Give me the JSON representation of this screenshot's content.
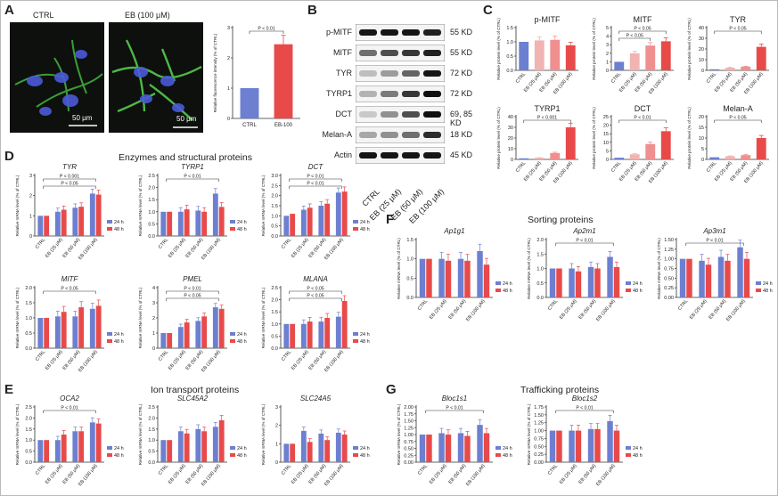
{
  "colors": {
    "blue": "#6d7fd0",
    "red": "#e84a4a",
    "pink1": "#f2b3b3",
    "pink2": "#f08f8f",
    "light1": "#fad1d1"
  },
  "panels": {
    "A": "A",
    "B": "B",
    "C": "C",
    "D": "D",
    "E": "E",
    "F": "F",
    "G": "G"
  },
  "sections": {
    "D": "Enzymes and structural proteins",
    "E": "Ion transport proteins",
    "F": "Sorting proteins",
    "G": "Trafficking proteins"
  },
  "panelA": {
    "labels": [
      "CTRL",
      "EB (100 μM)"
    ],
    "scale": "50 μm"
  },
  "western": {
    "proteins": [
      "p-MITF",
      "MITF",
      "TYR",
      "TYRP1",
      "DCT",
      "Melan-A",
      "Actin"
    ],
    "kd": [
      "55 KD",
      "55 KD",
      "72 KD",
      "72 KD",
      "69, 85 KD",
      "18 KD",
      "45 KD"
    ],
    "lanes": [
      "CTRL",
      "EB (25 μM)",
      "EB (50 μM)",
      "EB (100 μM)"
    ]
  },
  "legend": {
    "h24": "24 h",
    "h48": "48 h"
  },
  "chart_data": [
    {
      "id": "A-fluor",
      "type": "bar",
      "title": "",
      "ylabel": "Relative fluorescence intensity (% of CTRL)",
      "categories": [
        "CTRL",
        "EB-100"
      ],
      "values": [
        1.0,
        2.45
      ],
      "ylim": [
        0,
        3
      ],
      "yticks": [
        "0",
        "1",
        "2",
        "3"
      ],
      "annotations": [
        {
          "text": "P < 0.01"
        }
      ]
    },
    {
      "id": "C-pMITF",
      "type": "bar",
      "title": "p-MITF",
      "ylabel": "Relative protein level (% of CTRL)",
      "categories": [
        "CTRL",
        "EB (25 μM)",
        "EB (50 μM)",
        "EB (100 μM)"
      ],
      "values": [
        1.0,
        1.05,
        1.07,
        0.88
      ],
      "ylim": [
        0,
        1.5
      ],
      "yticks": [
        "0.0",
        "0.5",
        "1.0",
        "1.5"
      ],
      "annotations": []
    },
    {
      "id": "C-MITF",
      "type": "bar",
      "title": "MITF",
      "ylabel": "Relative protein level (% of CTRL)",
      "categories": [
        "CTRL",
        "EB (25 μM)",
        "EB (50 μM)",
        "EB (100 μM)"
      ],
      "values": [
        1.0,
        2.0,
        2.9,
        3.4
      ],
      "ylim": [
        0,
        5
      ],
      "yticks": [
        "0",
        "1",
        "2",
        "3",
        "4",
        "5"
      ],
      "annotations": [
        {
          "text": "P < 0.05"
        },
        {
          "text": "P < 0.05"
        }
      ]
    },
    {
      "id": "C-TYR",
      "type": "bar",
      "title": "TYR",
      "ylabel": "Relative protein level (% of CTRL)",
      "categories": [
        "CTRL",
        "EB (25 μM)",
        "EB (50 μM)",
        "EB (100 μM)"
      ],
      "values": [
        1.0,
        2.5,
        3.5,
        22.0
      ],
      "ylim": [
        0,
        40
      ],
      "yticks": [
        "0",
        "10",
        "20",
        "30",
        "40"
      ],
      "annotations": [
        {
          "text": "P < 0.05"
        }
      ]
    },
    {
      "id": "C-TYRP1",
      "type": "bar",
      "title": "TYRP1",
      "ylabel": "Relative protein level (% of CTRL)",
      "categories": [
        "CTRL",
        "EB (25 μM)",
        "EB (50 μM)",
        "EB (100 μM)"
      ],
      "values": [
        1.0,
        1.5,
        6.0,
        30.0
      ],
      "ylim": [
        0,
        40
      ],
      "yticks": [
        "0",
        "10",
        "20",
        "30",
        "40"
      ],
      "annotations": [
        {
          "text": "P < 0.001"
        }
      ]
    },
    {
      "id": "C-DCT",
      "type": "bar",
      "title": "DCT",
      "ylabel": "Relative protein level (% of CTRL)",
      "categories": [
        "CTRL",
        "EB (25 μM)",
        "EB (50 μM)",
        "EB (100 μM)"
      ],
      "values": [
        1.0,
        3.0,
        9.0,
        16.5
      ],
      "ylim": [
        0,
        25
      ],
      "yticks": [
        "0",
        "5",
        "10",
        "15",
        "20",
        "25"
      ],
      "annotations": [
        {
          "text": "P < 0.01"
        }
      ]
    },
    {
      "id": "C-MelanA",
      "type": "bar",
      "title": "Melan-A",
      "ylabel": "Relative protein level (% of CTRL)",
      "categories": [
        "CTRL",
        "EB (25 μM)",
        "EB (50 μM)",
        "EB (100 μM)"
      ],
      "values": [
        1.0,
        1.5,
        2.0,
        10.0
      ],
      "ylim": [
        0,
        20
      ],
      "yticks": [
        "0",
        "5",
        "10",
        "15",
        "20"
      ],
      "annotations": [
        {
          "text": "P < 0.05"
        }
      ]
    },
    {
      "id": "D-TYR",
      "type": "bar",
      "title": "TYR",
      "ylabel": "Relative mRNA level (% of CTRL)",
      "categories": [
        "CTRL",
        "EB (25 μM)",
        "EB (50 μM)",
        "EB (100 μM)"
      ],
      "series": [
        {
          "name": "24 h",
          "values": [
            1.0,
            1.2,
            1.4,
            2.1
          ]
        },
        {
          "name": "48 h",
          "values": [
            1.0,
            1.3,
            1.45,
            2.05
          ]
        }
      ],
      "ylim": [
        0,
        3
      ],
      "yticks": [
        "0",
        "1",
        "2",
        "3"
      ],
      "annotations": [
        {
          "text": "P < 0.001"
        },
        {
          "text": "P < 0.05"
        }
      ]
    },
    {
      "id": "D-TYRP1",
      "type": "bar",
      "title": "TYRP1",
      "ylabel": "Relative mRNA level (% of CTRL)",
      "categories": [
        "CTRL",
        "EB (25 μM)",
        "EB (50 μM)",
        "EB (100 μM)"
      ],
      "series": [
        {
          "name": "24 h",
          "values": [
            1.0,
            1.0,
            1.05,
            1.75
          ]
        },
        {
          "name": "48 h",
          "values": [
            1.0,
            1.1,
            1.0,
            1.2
          ]
        }
      ],
      "ylim": [
        0,
        2.5
      ],
      "yticks": [
        "0.0",
        "0.5",
        "1.0",
        "1.5",
        "2.0",
        "2.5"
      ],
      "annotations": [
        {
          "text": "P < 0.01"
        }
      ]
    },
    {
      "id": "D-DCT",
      "type": "bar",
      "title": "DCT",
      "ylabel": "Relative mRNA level (% of CTRL)",
      "categories": [
        "CTRL",
        "EB (25 μM)",
        "EB (50 μM)",
        "EB (100 μM)"
      ],
      "series": [
        {
          "name": "24 h",
          "values": [
            1.0,
            1.3,
            1.5,
            2.15
          ]
        },
        {
          "name": "48 h",
          "values": [
            1.1,
            1.4,
            1.6,
            2.2
          ]
        }
      ],
      "ylim": [
        0,
        3
      ],
      "yticks": [
        "0.0",
        "0.5",
        "1.0",
        "1.5",
        "2.0",
        "2.5",
        "3.0"
      ],
      "annotations": [
        {
          "text": "P < 0.01"
        },
        {
          "text": "P < 0.01"
        }
      ]
    },
    {
      "id": "D-MITF",
      "type": "bar",
      "title": "MITF",
      "ylabel": "Relative mRNA level (% of CTRL)",
      "categories": [
        "CTRL",
        "EB (25 μM)",
        "EB (50 μM)",
        "EB (100 μM)"
      ],
      "series": [
        {
          "name": "24 h",
          "values": [
            1.0,
            1.05,
            1.05,
            1.3
          ]
        },
        {
          "name": "48 h",
          "values": [
            1.0,
            1.2,
            1.35,
            1.4
          ]
        }
      ],
      "ylim": [
        0,
        2
      ],
      "yticks": [
        "0.0",
        "0.5",
        "1.0",
        "1.5",
        "2.0"
      ],
      "annotations": [
        {
          "text": "P < 0.05"
        }
      ]
    },
    {
      "id": "D-PMEL",
      "type": "bar",
      "title": "PMEL",
      "ylabel": "Relative mRNA level (% of CTRL)",
      "categories": [
        "CTRL",
        "EB (25 μM)",
        "EB (50 μM)",
        "EB (100 μM)"
      ],
      "series": [
        {
          "name": "24 h",
          "values": [
            1.0,
            1.4,
            1.8,
            2.7
          ]
        },
        {
          "name": "48 h",
          "values": [
            1.0,
            1.7,
            2.1,
            2.6
          ]
        }
      ],
      "ylim": [
        0,
        4
      ],
      "yticks": [
        "0",
        "1",
        "2",
        "3",
        "4"
      ],
      "annotations": [
        {
          "text": "P < 0.01"
        },
        {
          "text": "P < 0.05"
        }
      ]
    },
    {
      "id": "D-MLANA",
      "type": "bar",
      "title": "MLANA",
      "ylabel": "Relative mRNA level (% of CTRL)",
      "categories": [
        "CTRL",
        "EB (25 μM)",
        "EB (50 μM)",
        "EB (100 μM)"
      ],
      "series": [
        {
          "name": "24 h",
          "values": [
            1.0,
            1.0,
            1.1,
            1.3
          ]
        },
        {
          "name": "48 h",
          "values": [
            1.0,
            1.1,
            1.25,
            1.95
          ]
        }
      ],
      "ylim": [
        0,
        2.5
      ],
      "yticks": [
        "0.0",
        "0.5",
        "1.0",
        "1.5",
        "2.0",
        "2.5"
      ],
      "annotations": [
        {
          "text": "P < 0.05"
        },
        {
          "text": "P < 0.05"
        }
      ]
    },
    {
      "id": "E-OCA2",
      "type": "bar",
      "title": "OCA2",
      "ylabel": "Relative mRNA level (% of CTRL)",
      "categories": [
        "CTRL",
        "EB (25 μM)",
        "EB (50 μM)",
        "EB (100 μM)"
      ],
      "series": [
        {
          "name": "24 h",
          "values": [
            1.0,
            1.0,
            1.4,
            1.8
          ]
        },
        {
          "name": "48 h",
          "values": [
            1.0,
            1.25,
            1.4,
            1.75
          ]
        }
      ],
      "ylim": [
        0,
        2.5
      ],
      "yticks": [
        "0.0",
        "0.5",
        "1.0",
        "1.5",
        "2.0",
        "2.5"
      ],
      "annotations": [
        {
          "text": "P < 0.01"
        }
      ]
    },
    {
      "id": "E-SLC45A2",
      "type": "bar",
      "title": "SLC45A2",
      "ylabel": "Relative mRNA level (% of CTRL)",
      "categories": [
        "CTRL",
        "EB (25 μM)",
        "EB (50 μM)",
        "EB (100 μM)"
      ],
      "series": [
        {
          "name": "24 h",
          "values": [
            1.0,
            1.4,
            1.5,
            1.6
          ]
        },
        {
          "name": "48 h",
          "values": [
            1.0,
            1.3,
            1.4,
            1.9
          ]
        }
      ],
      "ylim": [
        0,
        2.5
      ],
      "yticks": [
        "0.0",
        "0.5",
        "1.0",
        "1.5",
        "2.0",
        "2.5"
      ],
      "annotations": []
    },
    {
      "id": "E-SLC24A5",
      "type": "bar",
      "title": "SLC24A5",
      "ylabel": "Relative mRNA level (% of CTRL)",
      "categories": [
        "CTRL",
        "EB (25 μM)",
        "EB (50 μM)",
        "EB (100 μM)"
      ],
      "series": [
        {
          "name": "24 h",
          "values": [
            1.0,
            1.7,
            1.55,
            1.6
          ]
        },
        {
          "name": "48 h",
          "values": [
            1.0,
            1.1,
            1.2,
            1.5
          ]
        }
      ],
      "ylim": [
        0,
        3
      ],
      "yticks": [
        "0",
        "1",
        "2",
        "3"
      ],
      "annotations": []
    },
    {
      "id": "F-Ap1g1",
      "type": "bar",
      "title": "Ap1g1",
      "ylabel": "Relative mRNA level (% of CTRL)",
      "categories": [
        "CTRL",
        "EB (25 μM)",
        "EB (50 μM)",
        "EB (100 μM)"
      ],
      "series": [
        {
          "name": "24 h",
          "values": [
            1.0,
            1.0,
            1.0,
            1.2
          ]
        },
        {
          "name": "48 h",
          "values": [
            1.0,
            0.95,
            0.95,
            0.85
          ]
        }
      ],
      "ylim": [
        0,
        1.5
      ],
      "yticks": [
        "0.0",
        "0.5",
        "1.0",
        "1.5"
      ],
      "annotations": []
    },
    {
      "id": "F-Ap2m1",
      "type": "bar",
      "title": "Ap2m1",
      "ylabel": "Relative mRNA level (% of CTRL)",
      "categories": [
        "CTRL",
        "EB (25 μM)",
        "EB (50 μM)",
        "EB (100 μM)"
      ],
      "series": [
        {
          "name": "24 h",
          "values": [
            1.0,
            1.0,
            1.05,
            1.4
          ]
        },
        {
          "name": "48 h",
          "values": [
            1.0,
            0.9,
            1.0,
            1.05
          ]
        }
      ],
      "ylim": [
        0,
        2
      ],
      "yticks": [
        "0.0",
        "0.5",
        "1.0",
        "1.5",
        "2.0"
      ],
      "annotations": [
        {
          "text": "P < 0.01"
        }
      ]
    },
    {
      "id": "F-Ap3m1",
      "type": "bar",
      "title": "Ap3m1",
      "ylabel": "Relative mRNA level (% of CTRL)",
      "categories": [
        "CTRL",
        "EB (25 μM)",
        "EB (50 μM)",
        "EB (100 μM)"
      ],
      "series": [
        {
          "name": "24 h",
          "values": [
            1.0,
            0.95,
            1.05,
            1.3
          ]
        },
        {
          "name": "48 h",
          "values": [
            1.0,
            0.85,
            0.95,
            1.0
          ]
        }
      ],
      "ylim": [
        0,
        1.5
      ],
      "yticks": [
        "0.00",
        "0.25",
        "0.50",
        "0.75",
        "1.00",
        "1.25",
        "1.50"
      ],
      "annotations": [
        {
          "text": "P < 0.01"
        }
      ]
    },
    {
      "id": "G-Bloc1s1",
      "type": "bar",
      "title": "Bloc1s1",
      "ylabel": "Relative mRNA level (% of CTRL)",
      "categories": [
        "CTRL",
        "EB (25 μM)",
        "EB (50 μM)",
        "EB (100 μM)"
      ],
      "series": [
        {
          "name": "24 h",
          "values": [
            1.0,
            1.05,
            1.05,
            1.35
          ]
        },
        {
          "name": "48 h",
          "values": [
            1.0,
            1.0,
            0.95,
            1.05
          ]
        }
      ],
      "ylim": [
        0,
        2
      ],
      "yticks": [
        "0.00",
        "0.25",
        "0.50",
        "0.75",
        "1.00",
        "1.25",
        "1.50",
        "1.75",
        "2.00"
      ],
      "annotations": [
        {
          "text": "P < 0.01"
        }
      ]
    },
    {
      "id": "G-Bloc1s2",
      "type": "bar",
      "title": "Bloc1s2",
      "ylabel": "Relative mRNA level (% of CTRL)",
      "categories": [
        "CTRL",
        "EB (25 μM)",
        "EB (50 μM)",
        "EB (100 μM)"
      ],
      "series": [
        {
          "name": "24 h",
          "values": [
            1.0,
            1.0,
            1.05,
            1.3
          ]
        },
        {
          "name": "48 h",
          "values": [
            1.0,
            1.0,
            1.05,
            1.0
          ]
        }
      ],
      "ylim": [
        0,
        1.75
      ],
      "yticks": [
        "0.00",
        "0.25",
        "0.50",
        "0.75",
        "1.00",
        "1.25",
        "1.50",
        "1.75"
      ],
      "annotations": [
        {
          "text": "P < 0.01"
        }
      ]
    }
  ]
}
